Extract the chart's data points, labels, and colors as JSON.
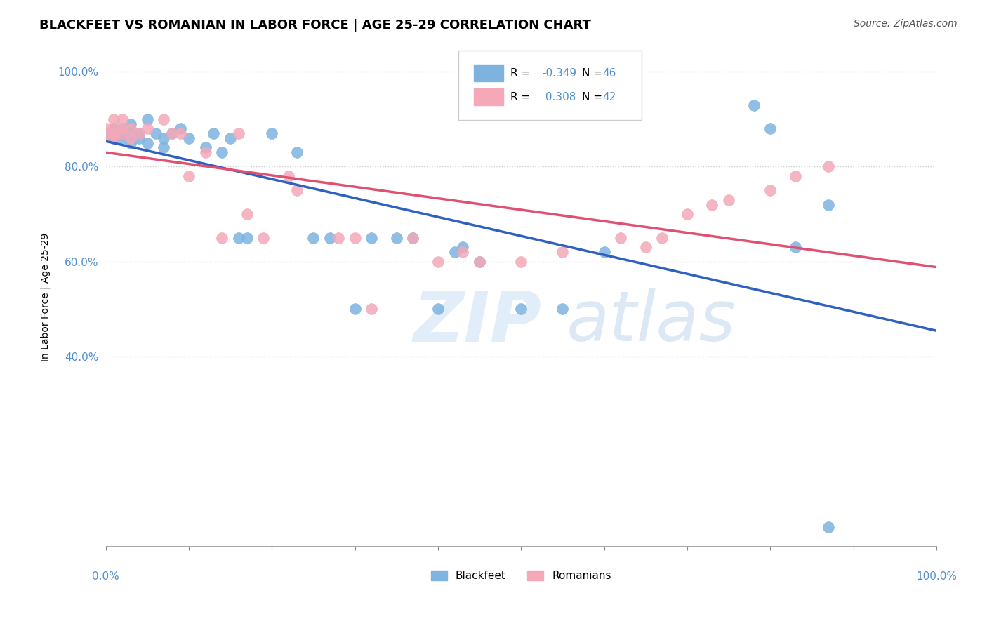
{
  "title": "BLACKFEET VS ROMANIAN IN LABOR FORCE | AGE 25-29 CORRELATION CHART",
  "source": "Source: ZipAtlas.com",
  "ylabel": "In Labor Force | Age 25-29",
  "legend_R_blue": "-0.349",
  "legend_N_blue": "46",
  "legend_R_pink": "0.308",
  "legend_N_pink": "42",
  "blue_color": "#7eb3e0",
  "pink_color": "#f4a8b8",
  "line_blue": "#3060c0",
  "line_pink": "#e05070",
  "watermark_zip": "ZIP",
  "watermark_atlas": "atlas",
  "blackfeet_x": [
    0.0,
    0.01,
    0.01,
    0.01,
    0.02,
    0.02,
    0.02,
    0.03,
    0.03,
    0.03,
    0.04,
    0.04,
    0.05,
    0.05,
    0.06,
    0.07,
    0.07,
    0.08,
    0.09,
    0.1,
    0.12,
    0.13,
    0.14,
    0.15,
    0.16,
    0.17,
    0.2,
    0.23,
    0.25,
    0.27,
    0.3,
    0.32,
    0.35,
    0.37,
    0.4,
    0.42,
    0.43,
    0.45,
    0.5,
    0.55,
    0.6,
    0.78,
    0.8,
    0.83,
    0.87,
    0.87
  ],
  "blackfeet_y": [
    0.87,
    0.88,
    0.87,
    0.86,
    0.88,
    0.87,
    0.86,
    0.89,
    0.87,
    0.85,
    0.87,
    0.86,
    0.9,
    0.85,
    0.87,
    0.86,
    0.84,
    0.87,
    0.88,
    0.86,
    0.84,
    0.87,
    0.83,
    0.86,
    0.65,
    0.65,
    0.87,
    0.83,
    0.65,
    0.65,
    0.5,
    0.65,
    0.65,
    0.65,
    0.5,
    0.62,
    0.63,
    0.6,
    0.5,
    0.5,
    0.62,
    0.93,
    0.88,
    0.63,
    0.72,
    0.04
  ],
  "romanian_x": [
    0.0,
    0.0,
    0.01,
    0.01,
    0.01,
    0.01,
    0.02,
    0.02,
    0.02,
    0.03,
    0.03,
    0.04,
    0.05,
    0.07,
    0.08,
    0.09,
    0.1,
    0.12,
    0.14,
    0.16,
    0.17,
    0.19,
    0.22,
    0.23,
    0.28,
    0.3,
    0.32,
    0.37,
    0.4,
    0.43,
    0.45,
    0.5,
    0.55,
    0.62,
    0.65,
    0.67,
    0.7,
    0.73,
    0.75,
    0.8,
    0.83,
    0.87
  ],
  "romanian_y": [
    0.88,
    0.87,
    0.9,
    0.88,
    0.87,
    0.86,
    0.9,
    0.88,
    0.87,
    0.88,
    0.86,
    0.87,
    0.88,
    0.9,
    0.87,
    0.87,
    0.78,
    0.83,
    0.65,
    0.87,
    0.7,
    0.65,
    0.78,
    0.75,
    0.65,
    0.65,
    0.5,
    0.65,
    0.6,
    0.62,
    0.6,
    0.6,
    0.62,
    0.65,
    0.63,
    0.65,
    0.7,
    0.72,
    0.73,
    0.75,
    0.78,
    0.8
  ],
  "xlim": [
    0.0,
    1.0
  ],
  "ylim": [
    0.0,
    1.05
  ],
  "yticks": [
    0.4,
    0.6,
    0.8,
    1.0
  ],
  "ytick_labels": [
    "40.0%",
    "60.0%",
    "80.0%",
    "100.0%"
  ],
  "grid_color": "#cccccc",
  "background_color": "#ffffff",
  "tick_color": "#5090d0"
}
